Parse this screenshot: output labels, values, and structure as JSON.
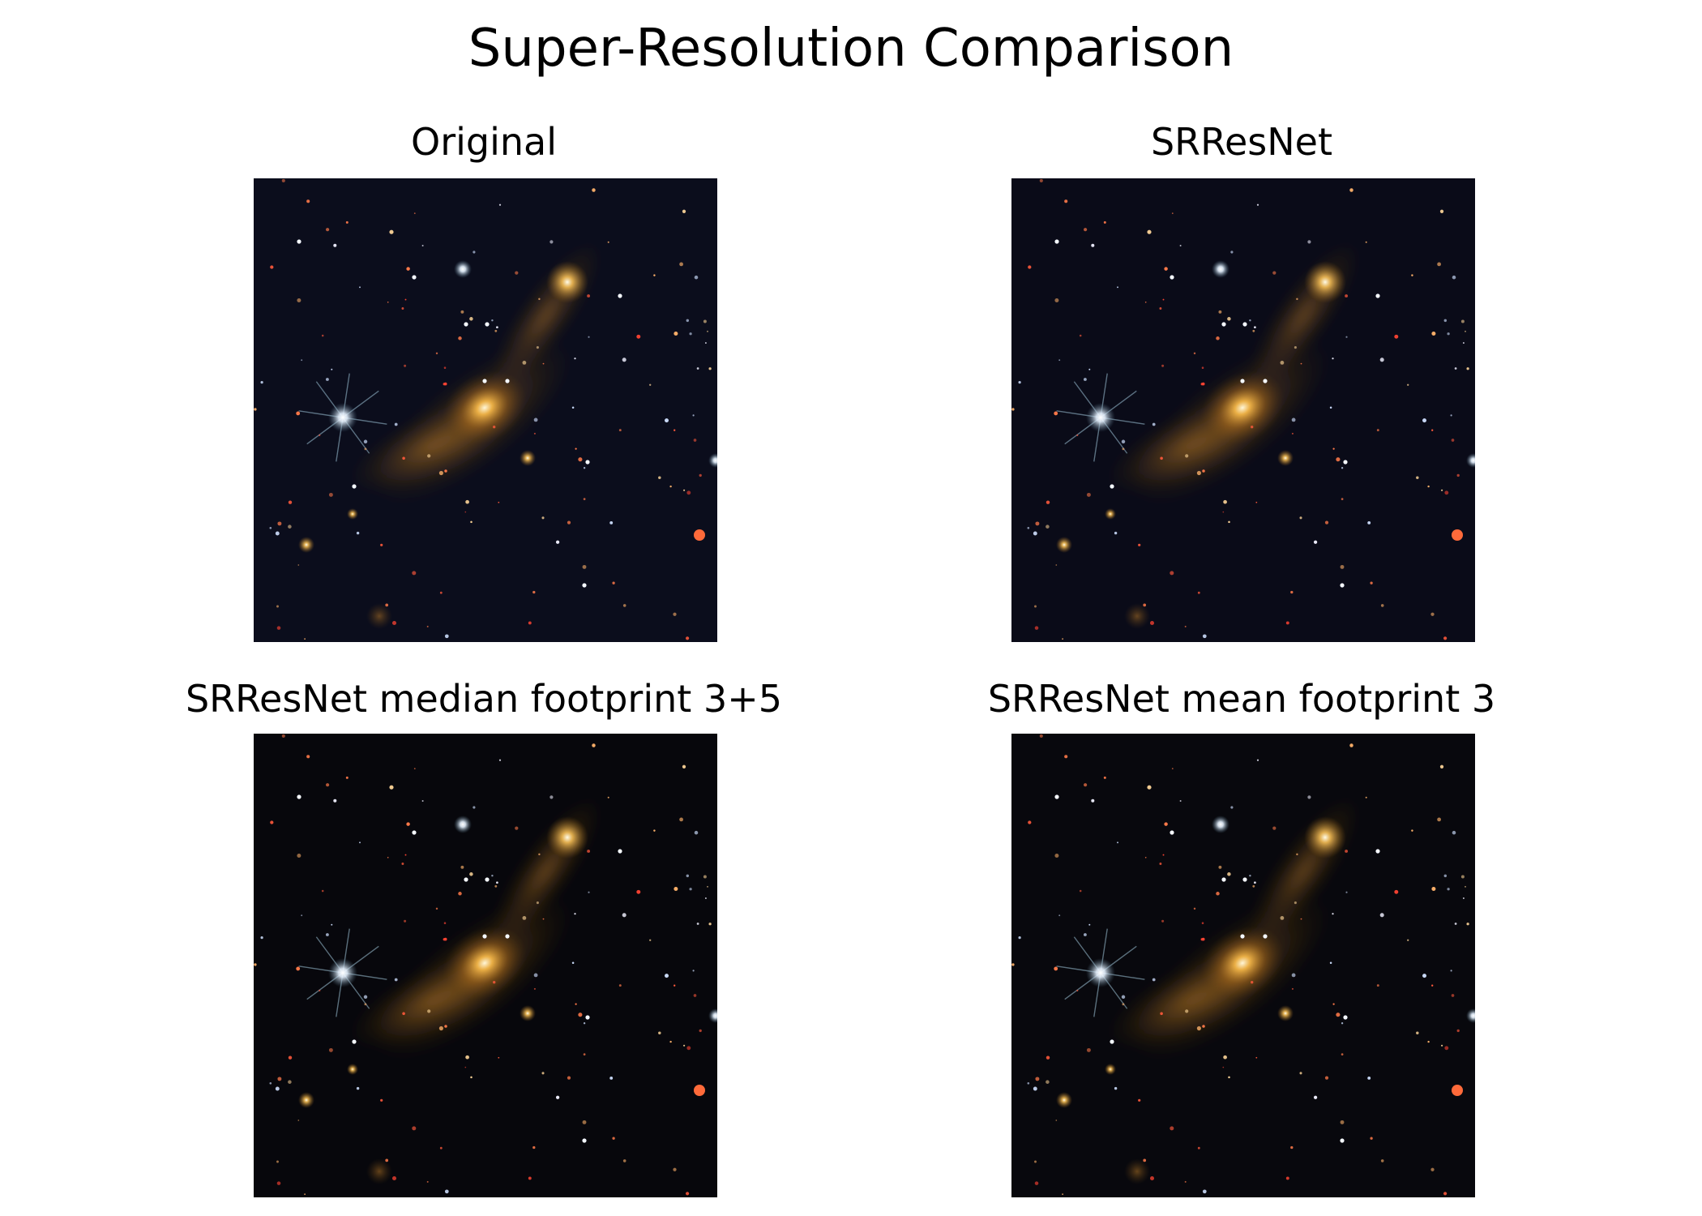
{
  "figure": {
    "title": "Super-Resolution Comparison",
    "panels": [
      {
        "title": "Original",
        "background": "#0b0d1c"
      },
      {
        "title": "SRResNet",
        "background": "#0a0b18"
      },
      {
        "title": "SRResNet median footprint 3+5",
        "background": "#07070c"
      },
      {
        "title": "SRResNet mean footprint 3",
        "background": "#08080d"
      }
    ]
  }
}
